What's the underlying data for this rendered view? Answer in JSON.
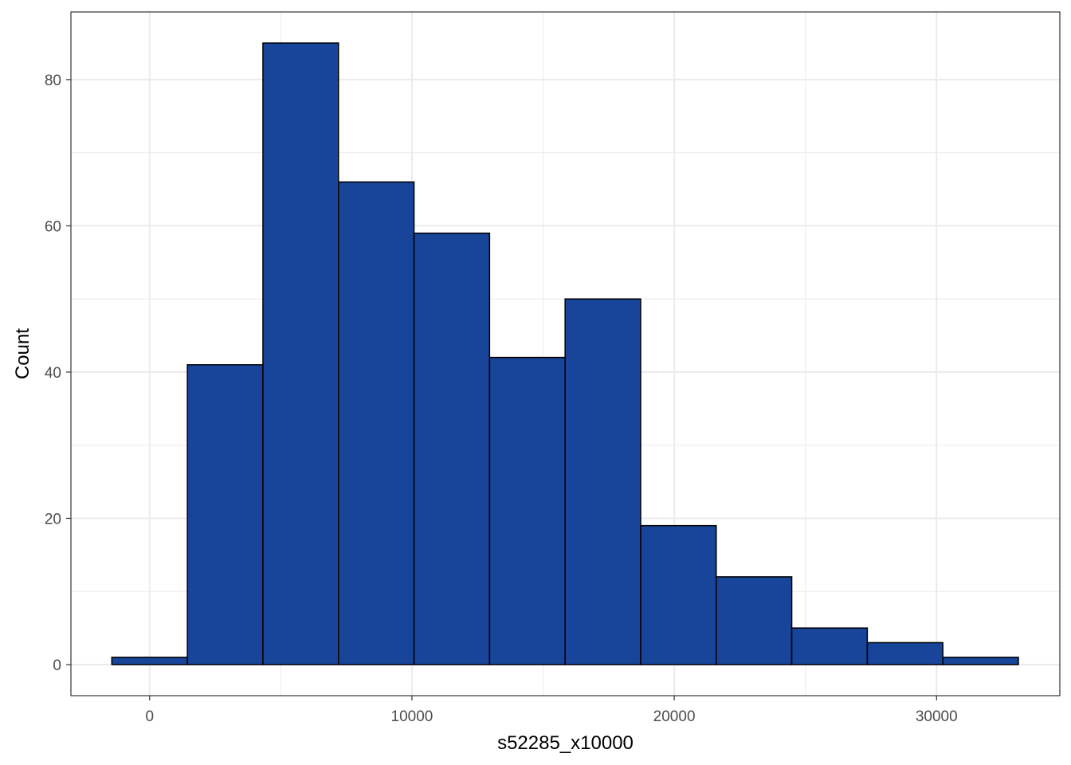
{
  "chart_data": {
    "type": "bar",
    "subtype": "histogram",
    "title": "",
    "xlabel": "s52285_x10000",
    "ylabel": "Count",
    "bin_width": 2880,
    "bins": [
      {
        "x_start": -1440,
        "x_end": 1440,
        "count": 1
      },
      {
        "x_start": 1440,
        "x_end": 4320,
        "count": 41
      },
      {
        "x_start": 4320,
        "x_end": 7200,
        "count": 85
      },
      {
        "x_start": 7200,
        "x_end": 10080,
        "count": 66
      },
      {
        "x_start": 10080,
        "x_end": 12960,
        "count": 59
      },
      {
        "x_start": 12960,
        "x_end": 15840,
        "count": 42
      },
      {
        "x_start": 15840,
        "x_end": 18720,
        "count": 50
      },
      {
        "x_start": 18720,
        "x_end": 21600,
        "count": 19
      },
      {
        "x_start": 21600,
        "x_end": 24480,
        "count": 12
      },
      {
        "x_start": 24480,
        "x_end": 27360,
        "count": 5
      },
      {
        "x_start": 27360,
        "x_end": 30240,
        "count": 3
      },
      {
        "x_start": 30240,
        "x_end": 33120,
        "count": 1
      }
    ],
    "xlim": [
      -3000,
      34700
    ],
    "ylim": [
      -4.25,
      89.25
    ],
    "x_ticks": [
      0,
      10000,
      20000,
      30000
    ],
    "y_ticks": [
      0,
      20,
      40,
      60,
      80
    ],
    "x_minor_ticks": [
      5000,
      15000,
      25000
    ],
    "y_minor_ticks": [
      10,
      30,
      50,
      70
    ],
    "grid": true,
    "bar_fill": "#18449a",
    "bar_outline": "#000000",
    "grid_color": "#ebebeb",
    "panel_border": "#333333"
  }
}
